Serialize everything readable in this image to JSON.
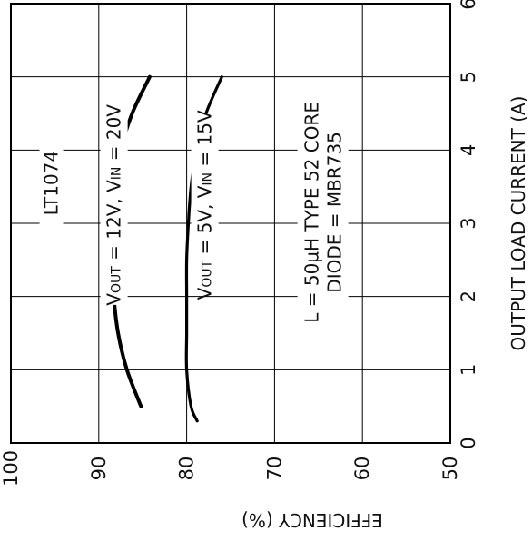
{
  "chart_data": {
    "type": "line",
    "orientation": "rotated 90° counter-clockwise (x axis vertical on right, y axis horizontal at bottom, y increases to the left)",
    "x": {
      "label": "OUTPUT LOAD CURRENT (A)",
      "range": [
        0,
        6
      ],
      "ticks": [
        "0",
        "1",
        "2",
        "3",
        "4",
        "5",
        "6"
      ]
    },
    "y": {
      "label": "EFFICIENCY (%)",
      "range": [
        50,
        100
      ],
      "ticks": [
        "50",
        "60",
        "70",
        "80",
        "90",
        "100"
      ]
    },
    "grid": true,
    "series": [
      {
        "name": "VOUT = 12V, VIN = 20V",
        "label_parts": {
          "v1": "V",
          "s1": "OUT",
          "t1": " = 12V, V",
          "s2": "IN",
          "t2": " = 20V"
        },
        "x": [
          0.5,
          1.0,
          1.5,
          2.0,
          2.5,
          3.0,
          3.5,
          4.0,
          4.5,
          5.0
        ],
        "y": [
          85.2,
          86.8,
          87.8,
          88.3,
          88.5,
          88.5,
          88.2,
          87.5,
          86.2,
          84.2
        ]
      },
      {
        "name": "VOUT = 5V, VIN = 15V",
        "label_parts": {
          "v1": "V",
          "s1": "OUT",
          "t1": " = 5V, V",
          "s2": "IN",
          "t2": " = 15V"
        },
        "x": [
          0.3,
          0.5,
          1.0,
          1.5,
          2.0,
          2.5,
          3.0,
          3.5,
          4.0,
          4.5,
          5.0
        ],
        "y": [
          78.8,
          79.5,
          80.0,
          80.0,
          80.0,
          80.0,
          79.8,
          79.5,
          78.9,
          77.8,
          76.0
        ]
      }
    ],
    "annotations": {
      "part": "LT1074",
      "inductor_a": "L = 50",
      "inductor_mu": "µ",
      "inductor_b": "H TYPE 52 CORE",
      "diode": "DIODE = MBR735"
    }
  }
}
